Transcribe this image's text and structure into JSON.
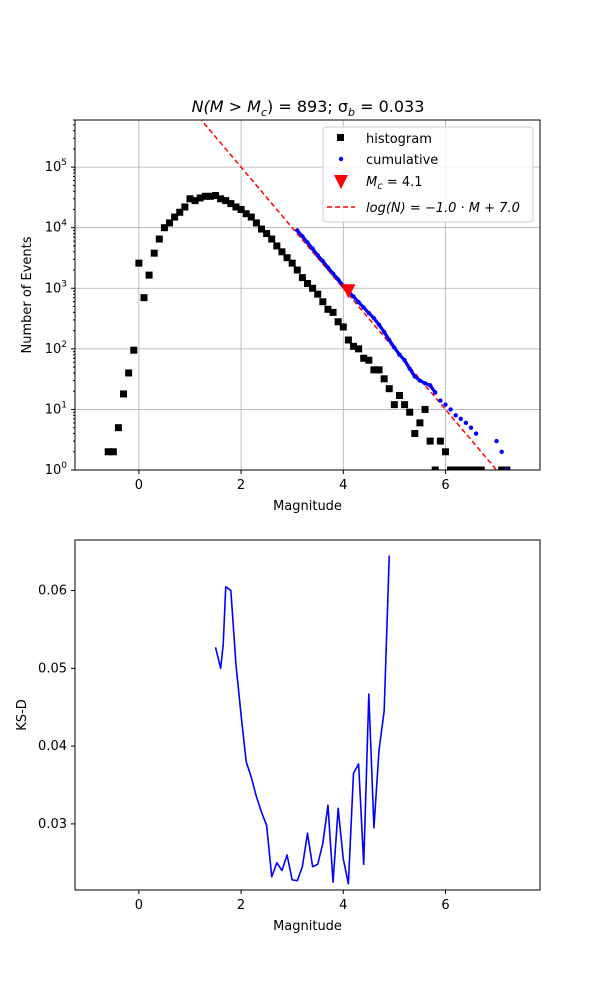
{
  "chart_data": [
    {
      "type": "scatter",
      "title_main": "N(M > M",
      "title_sub_c": "c",
      "title_mid": ") = 893; σ",
      "title_sub_b": "b",
      "title_end": " = 0.033",
      "xlabel": "Magnitude",
      "ylabel": "Number of Events",
      "xlim": [
        -1.25,
        7.85
      ],
      "ylim": [
        1,
        600000
      ],
      "yscale": "log",
      "grid": true,
      "legend_position": "top-right",
      "x_ticks": [
        0,
        2,
        4,
        6
      ],
      "y_ticks": [
        {
          "value": 1,
          "base": "10",
          "exp": "0"
        },
        {
          "value": 10,
          "base": "10",
          "exp": "1"
        },
        {
          "value": 100,
          "base": "10",
          "exp": "2"
        },
        {
          "value": 1000,
          "base": "10",
          "exp": "3"
        },
        {
          "value": 10000,
          "base": "10",
          "exp": "4"
        },
        {
          "value": 100000,
          "base": "10",
          "exp": "5"
        }
      ],
      "legend": {
        "histogram": "histogram",
        "cumulative": "cumulative",
        "mc_prefix": "M",
        "mc_sub": "c",
        "mc_suffix": " = 4.1",
        "fit_label": "log(N) = −1.0 · M + 7.0"
      },
      "colors": {
        "histogram": "#000000",
        "cumulative": "#0000ff",
        "mc": "#ff0000",
        "fit": "#ff0000"
      },
      "series": [
        {
          "name": "histogram",
          "x": [
            -0.6,
            -0.5,
            -0.4,
            -0.3,
            -0.2,
            -0.1,
            0.0,
            0.1,
            0.2,
            0.3,
            0.4,
            0.5,
            0.6,
            0.7,
            0.8,
            0.9,
            1.0,
            1.1,
            1.2,
            1.3,
            1.4,
            1.5,
            1.6,
            1.7,
            1.8,
            1.9,
            2.0,
            2.1,
            2.2,
            2.3,
            2.4,
            2.5,
            2.6,
            2.7,
            2.8,
            2.9,
            3.0,
            3.1,
            3.2,
            3.3,
            3.4,
            3.5,
            3.6,
            3.7,
            3.8,
            3.9,
            4.0,
            4.1,
            4.2,
            4.3,
            4.4,
            4.5,
            4.6,
            4.7,
            4.8,
            4.9,
            5.0,
            5.1,
            5.2,
            5.3,
            5.4,
            5.5,
            5.6,
            5.7,
            5.8,
            5.9,
            6.0,
            6.1,
            6.2,
            6.3,
            6.4,
            6.5,
            6.6,
            6.7,
            7.1,
            7.2
          ],
          "y": [
            2,
            2,
            5,
            18,
            40,
            95,
            2600,
            700,
            1650,
            3800,
            6500,
            10000,
            12000,
            15000,
            18000,
            22000,
            30000,
            28000,
            31000,
            33000,
            33000,
            34000,
            30000,
            28000,
            25000,
            22000,
            20000,
            17000,
            15000,
            12000,
            9500,
            8000,
            6500,
            5000,
            4000,
            3200,
            2600,
            2000,
            1500,
            1200,
            1000,
            800,
            600,
            450,
            400,
            280,
            230,
            140,
            110,
            100,
            70,
            65,
            45,
            45,
            32,
            22,
            12,
            17,
            12,
            9,
            4,
            6,
            10,
            3,
            1,
            3,
            2,
            1,
            1,
            1,
            1,
            1,
            1,
            1,
            1,
            1
          ]
        },
        {
          "name": "cumulative",
          "x": [
            3.1,
            3.2,
            3.3,
            3.4,
            3.5,
            3.6,
            3.7,
            3.8,
            3.9,
            4.0,
            4.1,
            4.2,
            4.3,
            4.4,
            4.5,
            4.6,
            4.7,
            4.8,
            4.9,
            5.0,
            5.1,
            5.2,
            5.3,
            5.4,
            5.5,
            5.6,
            5.7,
            5.8,
            5.9,
            6.0,
            6.1,
            6.2,
            6.3,
            6.4,
            6.5,
            6.6,
            7.0,
            7.1,
            7.2
          ],
          "y": [
            9000,
            7200,
            5700,
            4500,
            3500,
            2800,
            2200,
            1750,
            1400,
            1100,
            893,
            730,
            590,
            480,
            390,
            320,
            250,
            190,
            140,
            105,
            80,
            65,
            47,
            35,
            30,
            27,
            25,
            19,
            14,
            12,
            10,
            8,
            7,
            6,
            5,
            4,
            3,
            2,
            1
          ]
        }
      ],
      "mc_marker": {
        "x": 4.1,
        "y": 893
      },
      "fit_line": {
        "slope": -1.0,
        "intercept": 7.0
      }
    },
    {
      "type": "line",
      "title": "",
      "xlabel": "Magnitude",
      "ylabel": "KS-D",
      "xlim": [
        -1.25,
        7.85
      ],
      "ylim": [
        0.0215,
        0.0665
      ],
      "grid": false,
      "x_ticks": [
        0,
        2,
        4,
        6
      ],
      "y_ticks": [
        {
          "value": 0.03,
          "label": "0.03"
        },
        {
          "value": 0.04,
          "label": "0.04"
        },
        {
          "value": 0.05,
          "label": "0.05"
        },
        {
          "value": 0.06,
          "label": "0.06"
        }
      ],
      "colors": {
        "line": "#0000ff"
      },
      "series": [
        {
          "x": [
            1.5,
            1.6,
            1.65,
            1.7,
            1.8,
            1.9,
            2.0,
            2.1,
            2.2,
            2.3,
            2.4,
            2.5,
            2.6,
            2.7,
            2.8,
            2.9,
            3.0,
            3.1,
            3.2,
            3.3,
            3.4,
            3.5,
            3.6,
            3.7,
            3.8,
            3.9,
            4.0,
            4.1,
            4.2,
            4.3,
            4.4,
            4.5,
            4.6,
            4.7,
            4.8,
            4.9
          ],
          "y": [
            0.0527,
            0.05,
            0.053,
            0.0605,
            0.06,
            0.0505,
            0.044,
            0.038,
            0.036,
            0.0335,
            0.0315,
            0.0298,
            0.0232,
            0.025,
            0.024,
            0.026,
            0.0228,
            0.0227,
            0.0245,
            0.0288,
            0.0245,
            0.0248,
            0.0275,
            0.0324,
            0.0225,
            0.032,
            0.0255,
            0.0223,
            0.0365,
            0.0377,
            0.0248,
            0.0467,
            0.0295,
            0.0395,
            0.0445,
            0.0645
          ]
        }
      ]
    }
  ]
}
